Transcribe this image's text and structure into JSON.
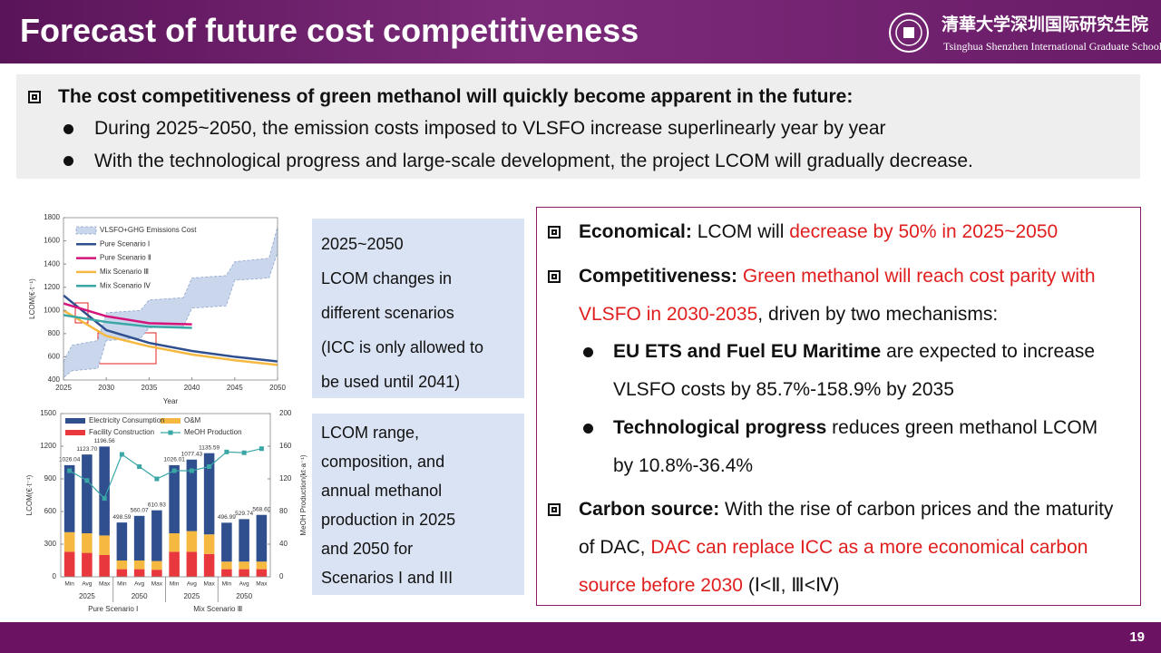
{
  "header": {
    "title": "Forecast of future cost competitiveness",
    "logo_cn": "清華大学深圳国际研究生院",
    "logo_en": "Tsinghua Shenzhen International Graduate School"
  },
  "summary": {
    "heading": "The cost competitiveness of green methanol will quickly become apparent in the future:",
    "bullets": [
      "During 2025~2050, the emission costs imposed to VLSFO increase superlinearly year by year",
      "With the technological progress and large-scale development, the project LCOM will gradually decrease."
    ]
  },
  "caption_1": [
    "2025~2050",
    "LCOM changes in",
    "different scenarios",
    "(ICC is only allowed to",
    "be used until 2041)"
  ],
  "caption_2": [
    "LCOM range,",
    "composition, and",
    "annual methanol",
    "production in 2025",
    "and 2050 for",
    "Scenarios I and III"
  ],
  "findings": [
    [
      "Economical:",
      "LCOM will",
      "decrease by 50% in 2025~2050"
    ],
    [
      "Competitiveness:",
      "Green methanol will reach cost parity with VLSFO in 2030-2035",
      ", driven by two mechanisms:"
    ],
    [
      "EU ETS and Fuel EU Maritime",
      "are expected to increase VLSFO costs by 85.7%-158.9% by 2035"
    ],
    [
      "Technological progress",
      "reduces green methanol LCOM by 10.8%-36.4%"
    ],
    [
      "Carbon source:",
      "With the rise of carbon prices and the maturity of DAC,",
      "DAC can replace ICC as a more economical carbon source before 2030",
      "(Ⅰ<Ⅱ, Ⅲ<Ⅳ)"
    ]
  ],
  "page_number": "19",
  "chart_data": [
    {
      "type": "line",
      "x_label": "Year",
      "y_label": "LCOM(€·t⁻¹)",
      "x": [
        2025,
        2030,
        2035,
        2040,
        2045,
        2050
      ],
      "xlim": [
        2025,
        2050
      ],
      "xticks": [
        2025,
        2030,
        2035,
        2040,
        2045,
        2050
      ],
      "ylim": [
        400,
        1800
      ],
      "yticks": [
        400,
        600,
        800,
        1000,
        1200,
        1400,
        1600,
        1800
      ],
      "band": {
        "name": "VLSFO+GHG Emissions Cost",
        "color": "#c9d6ec",
        "x": [
          2025,
          2026,
          2029,
          2030,
          2034,
          2035,
          2039,
          2040,
          2044,
          2045,
          2049,
          2050
        ],
        "lower": [
          420,
          480,
          500,
          740,
          760,
          850,
          860,
          1020,
          1040,
          1260,
          1280,
          1500
        ],
        "upper": [
          560,
          700,
          740,
          980,
          1000,
          1090,
          1110,
          1280,
          1300,
          1420,
          1450,
          1720
        ]
      },
      "series": [
        {
          "name": "Pure Scenario Ⅰ",
          "color": "#2f4f8f",
          "values": [
            1130,
            830,
            720,
            650,
            600,
            560
          ]
        },
        {
          "name": "Pure Scenario Ⅱ",
          "color": "#d4147a",
          "values": [
            1060,
            950,
            890,
            880,
            null,
            null
          ]
        },
        {
          "name": "Mix Scenario Ⅲ",
          "color": "#f5b942",
          "values": [
            1000,
            780,
            690,
            620,
            570,
            530
          ]
        },
        {
          "name": "Mix Scenario Ⅳ",
          "color": "#3aa6a6",
          "values": [
            960,
            900,
            860,
            850,
            null,
            null
          ]
        }
      ]
    },
    {
      "type": "bar",
      "y_label": "LCOM(€·t⁻¹)",
      "y2_label": "MeOH Production(kt·a⁻¹)",
      "categories": [
        "Min",
        "Avg",
        "Max",
        "Min",
        "Avg",
        "Max",
        "Min",
        "Avg",
        "Max",
        "Min",
        "Avg",
        "Max"
      ],
      "groups": [
        "2025",
        "2050",
        "2025",
        "2050"
      ],
      "scenarios": [
        "Pure Scenario Ⅰ",
        "Mix Scenario Ⅲ"
      ],
      "ylim": [
        0,
        1500
      ],
      "yticks": [
        0,
        300,
        600,
        900,
        1200,
        1500
      ],
      "y2lim": [
        0,
        200
      ],
      "y2ticks": [
        0,
        40,
        80,
        120,
        160,
        200
      ],
      "series": [
        {
          "name": "Facility Construction",
          "color": "#e8383d",
          "values": [
            230,
            220,
            200,
            70,
            70,
            65,
            230,
            230,
            210,
            70,
            70,
            70
          ]
        },
        {
          "name": "O&M",
          "color": "#f5b942",
          "values": [
            180,
            180,
            180,
            80,
            80,
            80,
            170,
            190,
            180,
            70,
            70,
            70
          ]
        },
        {
          "name": "Electricity Consumption",
          "color": "#2f4f8f",
          "values": [
            616,
            724,
            817,
            349,
            410,
            466,
            626,
            657,
            746,
            357,
            390,
            429
          ]
        },
        {
          "name": "MeOH Production",
          "color": "#3aa6a6",
          "type": "line",
          "axis": "y2",
          "values": [
            130,
            118,
            96,
            150,
            135,
            120,
            130,
            130,
            135,
            153,
            152,
            157
          ]
        }
      ],
      "totals": {
        "values": [
          1026.04,
          1123.7,
          1196.56,
          498.59,
          560.07,
          610.93,
          1026.01,
          1077.43,
          1135.59,
          496.99,
          529.74,
          568.6
        ],
        "value_labels": [
          "1026.04",
          "1123.70",
          "1196.56",
          "498.59",
          "560.07",
          "610.93",
          "1026.01",
          "1077.43",
          "1135.59",
          "496.99",
          "529.74",
          "568.60"
        ]
      }
    }
  ]
}
